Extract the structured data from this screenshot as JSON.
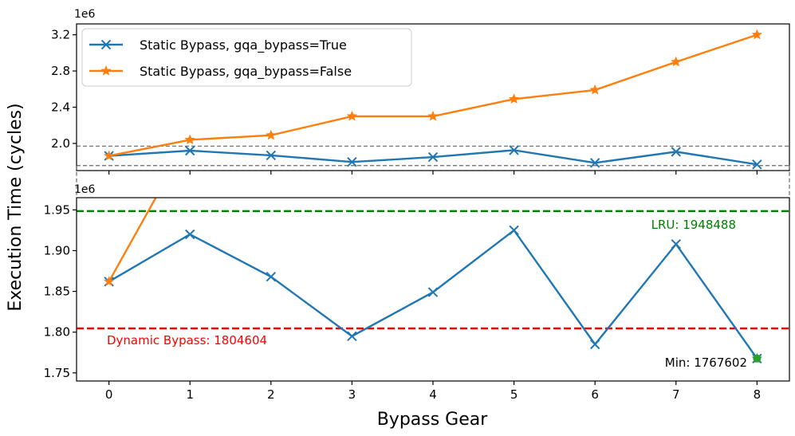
{
  "chart_data": {
    "type": "line",
    "xlabel": "Bypass Gear",
    "ylabel": "Execution Time (cycles)",
    "x": [
      0,
      1,
      2,
      3,
      4,
      5,
      6,
      7,
      8
    ],
    "x_tick_labels": [
      "0",
      "1",
      "2",
      "3",
      "4",
      "5",
      "6",
      "7",
      "8"
    ],
    "series": [
      {
        "name": "Static Bypass, gqa_bypass=True",
        "color": "#1f77b4",
        "marker": "x",
        "values": [
          1862000,
          1920000,
          1868000,
          1795000,
          1849000,
          1925000,
          1785000,
          1908000,
          1767602
        ]
      },
      {
        "name": "Static Bypass, gqa_bypass=False",
        "color": "#ff7f0e",
        "marker": "star",
        "values": [
          1862000,
          2040000,
          2090000,
          2300000,
          2300000,
          2490000,
          2590000,
          2900000,
          3200000
        ]
      }
    ],
    "top_panel": {
      "offset_label": "1e6",
      "ylim": [
        1700000,
        3320000
      ],
      "y_ticks": [
        2000000,
        2400000,
        2800000,
        3200000
      ],
      "y_tick_labels": [
        "2.0",
        "2.4",
        "2.8",
        "3.2"
      ],
      "zoom_box": [
        1755000,
        1970000
      ],
      "legend_position": "upper-left"
    },
    "bottom_panel": {
      "offset_label": "1e6",
      "ylim": [
        1740000,
        1965000
      ],
      "y_ticks": [
        1750000,
        1800000,
        1850000,
        1900000,
        1950000
      ],
      "y_tick_labels": [
        "1.75",
        "1.80",
        "1.85",
        "1.90",
        "1.95"
      ]
    },
    "reference_lines": [
      {
        "label": "LRU: 1948488",
        "value": 1948488,
        "color": "#008000"
      },
      {
        "label": "Dynamic Bypass: 1804604",
        "value": 1804604,
        "color": "#ff0000"
      }
    ],
    "min_point": {
      "label": "Min: 1767602",
      "x": 8,
      "value": 1767602,
      "color": "#2ca02c"
    }
  }
}
